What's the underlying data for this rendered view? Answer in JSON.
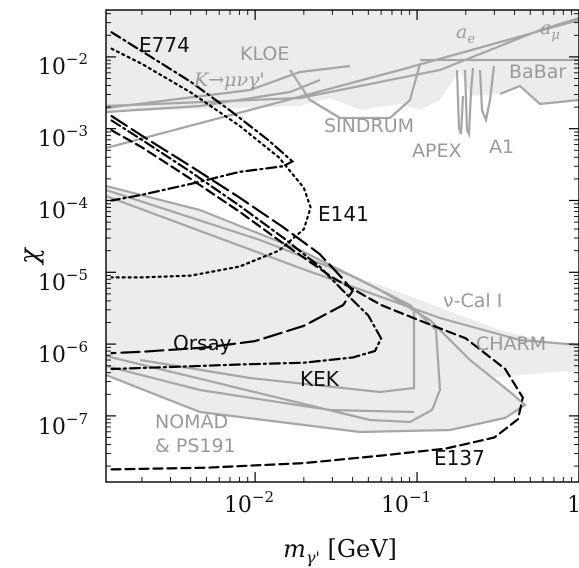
{
  "chart_data": {
    "type": "line",
    "title": "",
    "xlabel_symbol": "m",
    "xlabel_sub": "γ'",
    "xlabel_unit": " [GeV]",
    "ylabel": "χ",
    "xscale": "log",
    "yscale": "log",
    "xlim": [
      0.0012,
      1.0
    ],
    "ylim": [
      1.2e-08,
      0.045
    ],
    "xticks": [
      {
        "value": 0.01,
        "base": "10",
        "exp": "−2"
      },
      {
        "value": 0.1,
        "base": "10",
        "exp": "−1"
      },
      {
        "value": 1.0,
        "base": "1",
        "exp": ""
      }
    ],
    "yticks": [
      {
        "value": 1e-07,
        "base": "10",
        "exp": "−7"
      },
      {
        "value": 1e-06,
        "base": "10",
        "exp": "−6"
      },
      {
        "value": 1e-05,
        "base": "10",
        "exp": "−5"
      },
      {
        "value": 0.0001,
        "base": "10",
        "exp": "−4"
      },
      {
        "value": 0.001,
        "base": "10",
        "exp": "−3"
      },
      {
        "value": 0.01,
        "base": "10",
        "exp": "−2"
      }
    ],
    "series": [
      {
        "name": "E774",
        "style": "dashdot",
        "points": [
          [
            0.0013,
            0.022
          ],
          [
            0.002,
            0.012
          ],
          [
            0.004,
            0.0045
          ],
          [
            0.007,
            0.0018
          ],
          [
            0.012,
            0.0007
          ],
          [
            0.017,
            0.00035
          ],
          [
            0.015,
            0.0003
          ],
          [
            0.008,
            0.00025
          ],
          [
            0.004,
            0.00017
          ],
          [
            0.002,
            0.00012
          ],
          [
            0.0013,
            0.0001
          ]
        ]
      },
      {
        "name": "E141",
        "style": "dotted",
        "points": [
          [
            0.0013,
            0.013
          ],
          [
            0.002,
            0.008
          ],
          [
            0.004,
            0.0032
          ],
          [
            0.008,
            0.0011
          ],
          [
            0.014,
            0.0004
          ],
          [
            0.02,
            0.00015
          ],
          [
            0.022,
            8e-05
          ],
          [
            0.02,
            4e-05
          ],
          [
            0.014,
            2e-05
          ],
          [
            0.008,
            1.2e-05
          ],
          [
            0.004,
            9e-06
          ],
          [
            0.002,
            8.5e-06
          ],
          [
            0.0013,
            8.5e-06
          ]
        ]
      },
      {
        "name": "Orsay",
        "style": "longdash",
        "points": [
          [
            0.0013,
            0.0015
          ],
          [
            0.002,
            0.0008
          ],
          [
            0.004,
            0.0003
          ],
          [
            0.008,
            0.00011
          ],
          [
            0.015,
            4.2e-05
          ],
          [
            0.025,
            1.8e-05
          ],
          [
            0.035,
            8e-06
          ],
          [
            0.04,
            5.5e-06
          ],
          [
            0.035,
            3.5e-06
          ],
          [
            0.02,
            1.8e-06
          ],
          [
            0.01,
            1.1e-06
          ],
          [
            0.005,
            9e-07
          ],
          [
            0.002,
            7.8e-07
          ],
          [
            0.0013,
            7.5e-07
          ]
        ]
      },
      {
        "name": "KEK",
        "style": "dashdot",
        "points": [
          [
            0.0013,
            0.0013
          ],
          [
            0.002,
            0.0007
          ],
          [
            0.004,
            0.00025
          ],
          [
            0.008,
            8.5e-05
          ],
          [
            0.015,
            3e-05
          ],
          [
            0.025,
            1.2e-05
          ],
          [
            0.035,
            5.5e-06
          ],
          [
            0.05,
            2.5e-06
          ],
          [
            0.06,
            1.2e-06
          ],
          [
            0.055,
            8e-07
          ],
          [
            0.04,
            6.5e-07
          ],
          [
            0.02,
            5.5e-07
          ],
          [
            0.008,
            5.2e-07
          ],
          [
            0.003,
            4.8e-07
          ],
          [
            0.0013,
            4.5e-07
          ]
        ]
      },
      {
        "name": "E137",
        "style": "dashed",
        "points": [
          [
            0.0013,
            0.00095
          ],
          [
            0.002,
            0.00055
          ],
          [
            0.004,
            0.0002
          ],
          [
            0.008,
            7e-05
          ],
          [
            0.015,
            2.5e-05
          ],
          [
            0.03,
            8.5e-06
          ],
          [
            0.06,
            3.5e-06
          ],
          [
            0.1,
            2.2e-06
          ],
          [
            0.2,
            1.2e-06
          ],
          [
            0.35,
            4.5e-07
          ],
          [
            0.45,
            1.8e-07
          ],
          [
            0.42,
            9e-08
          ],
          [
            0.3,
            5e-08
          ],
          [
            0.15,
            3.5e-08
          ],
          [
            0.06,
            2.8e-08
          ],
          [
            0.02,
            2.2e-08
          ],
          [
            0.005,
            1.9e-08
          ],
          [
            0.0013,
            1.8e-08
          ]
        ]
      }
    ],
    "region_labels": {
      "black": {
        "e774": "E774",
        "e141": "E141",
        "orsay": "Orsay",
        "kek": "KEK",
        "e137": "E137"
      },
      "grey": {
        "kloe": "KLOE",
        "k_decay": "K→μνγ'",
        "ae": "a",
        "ae_sub": "e",
        "amu": "a",
        "amu_sub": "μ",
        "babar": "BaBar",
        "sindrum": "SINDRUM",
        "apex": "APEX",
        "a1": "A1",
        "nucal": "ν-Cal I",
        "charm": "CHARM",
        "nomad": "NOMAD",
        "ps191": "& PS191"
      }
    },
    "colors": {
      "excluded_fill": "#ececec",
      "excluded_stroke": "#a6a6a6",
      "curve": "#000000"
    },
    "grid": false,
    "legend": "none"
  }
}
